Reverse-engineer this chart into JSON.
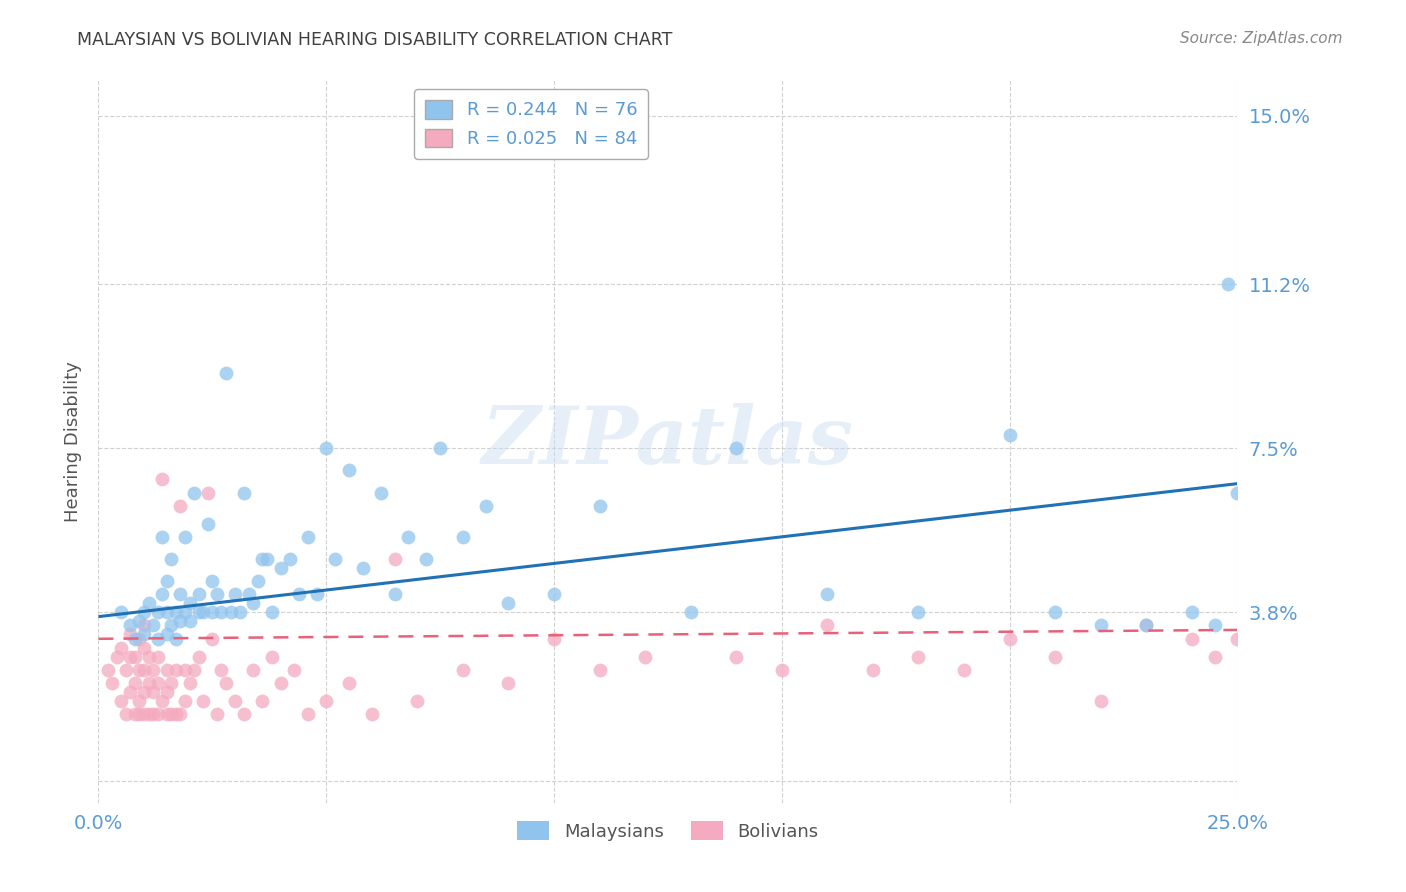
{
  "title": "MALAYSIAN VS BOLIVIAN HEARING DISABILITY CORRELATION CHART",
  "source": "Source: ZipAtlas.com",
  "ylabel": "Hearing Disability",
  "xlim": [
    0.0,
    0.25
  ],
  "ylim": [
    -0.005,
    0.158
  ],
  "ytick_vals": [
    0.0,
    0.038,
    0.075,
    0.112,
    0.15
  ],
  "ytick_labels": [
    "",
    "3.8%",
    "7.5%",
    "11.2%",
    "15.0%"
  ],
  "xtick_vals": [
    0.0,
    0.05,
    0.1,
    0.15,
    0.2,
    0.25
  ],
  "xtick_labels": [
    "0.0%",
    "",
    "",
    "",
    "",
    "25.0%"
  ],
  "legend_r_malaysian": "R = 0.244",
  "legend_n_malaysian": "N = 76",
  "legend_r_bolivian": "R = 0.025",
  "legend_n_bolivian": "N = 84",
  "malaysian_color": "#90C4ED",
  "bolivian_color": "#F4AABF",
  "malaysian_line_color": "#2171B5",
  "bolivian_line_color": "#E8607A",
  "watermark_text": "ZIPatlas",
  "background_color": "#FFFFFF",
  "grid_color": "#CCCCCC",
  "title_color": "#404040",
  "tick_label_color": "#5B9BD5",
  "source_color": "#888888",
  "ylabel_color": "#555555",
  "legend_text_color": "#5B9BD5",
  "bottom_legend_text_color": "#555555",
  "malaysian_line_x": [
    0.0,
    0.25
  ],
  "malaysian_line_y": [
    0.037,
    0.067
  ],
  "bolivian_line_x": [
    0.0,
    0.25
  ],
  "bolivian_line_y": [
    0.032,
    0.034
  ],
  "malaysian_scatter_x": [
    0.005,
    0.007,
    0.008,
    0.009,
    0.01,
    0.01,
    0.011,
    0.012,
    0.013,
    0.013,
    0.014,
    0.014,
    0.015,
    0.015,
    0.015,
    0.016,
    0.016,
    0.017,
    0.017,
    0.018,
    0.018,
    0.019,
    0.019,
    0.02,
    0.02,
    0.021,
    0.022,
    0.022,
    0.023,
    0.024,
    0.025,
    0.025,
    0.026,
    0.027,
    0.028,
    0.029,
    0.03,
    0.031,
    0.032,
    0.033,
    0.034,
    0.035,
    0.036,
    0.037,
    0.038,
    0.04,
    0.042,
    0.044,
    0.046,
    0.048,
    0.05,
    0.052,
    0.055,
    0.058,
    0.062,
    0.065,
    0.068,
    0.072,
    0.075,
    0.08,
    0.085,
    0.09,
    0.1,
    0.11,
    0.13,
    0.14,
    0.16,
    0.18,
    0.2,
    0.21,
    0.22,
    0.23,
    0.24,
    0.245,
    0.248,
    0.25
  ],
  "malaysian_scatter_y": [
    0.038,
    0.035,
    0.032,
    0.036,
    0.033,
    0.038,
    0.04,
    0.035,
    0.032,
    0.038,
    0.042,
    0.055,
    0.033,
    0.038,
    0.045,
    0.035,
    0.05,
    0.032,
    0.038,
    0.036,
    0.042,
    0.038,
    0.055,
    0.036,
    0.04,
    0.065,
    0.038,
    0.042,
    0.038,
    0.058,
    0.038,
    0.045,
    0.042,
    0.038,
    0.092,
    0.038,
    0.042,
    0.038,
    0.065,
    0.042,
    0.04,
    0.045,
    0.05,
    0.05,
    0.038,
    0.048,
    0.05,
    0.042,
    0.055,
    0.042,
    0.075,
    0.05,
    0.07,
    0.048,
    0.065,
    0.042,
    0.055,
    0.05,
    0.075,
    0.055,
    0.062,
    0.04,
    0.042,
    0.062,
    0.038,
    0.075,
    0.042,
    0.038,
    0.078,
    0.038,
    0.035,
    0.035,
    0.038,
    0.035,
    0.112,
    0.065
  ],
  "bolivian_scatter_x": [
    0.002,
    0.003,
    0.004,
    0.005,
    0.005,
    0.006,
    0.006,
    0.007,
    0.007,
    0.007,
    0.008,
    0.008,
    0.008,
    0.009,
    0.009,
    0.009,
    0.009,
    0.01,
    0.01,
    0.01,
    0.01,
    0.01,
    0.011,
    0.011,
    0.011,
    0.012,
    0.012,
    0.012,
    0.013,
    0.013,
    0.013,
    0.014,
    0.014,
    0.015,
    0.015,
    0.015,
    0.016,
    0.016,
    0.017,
    0.017,
    0.018,
    0.018,
    0.019,
    0.019,
    0.02,
    0.021,
    0.022,
    0.023,
    0.024,
    0.025,
    0.026,
    0.027,
    0.028,
    0.03,
    0.032,
    0.034,
    0.036,
    0.038,
    0.04,
    0.043,
    0.046,
    0.05,
    0.055,
    0.06,
    0.065,
    0.07,
    0.08,
    0.09,
    0.1,
    0.11,
    0.12,
    0.14,
    0.15,
    0.16,
    0.17,
    0.18,
    0.19,
    0.2,
    0.21,
    0.22,
    0.23,
    0.24,
    0.245,
    0.25
  ],
  "bolivian_scatter_y": [
    0.025,
    0.022,
    0.028,
    0.018,
    0.03,
    0.015,
    0.025,
    0.02,
    0.028,
    0.033,
    0.015,
    0.022,
    0.028,
    0.015,
    0.018,
    0.025,
    0.032,
    0.015,
    0.02,
    0.025,
    0.03,
    0.035,
    0.015,
    0.022,
    0.028,
    0.015,
    0.02,
    0.025,
    0.015,
    0.022,
    0.028,
    0.018,
    0.068,
    0.015,
    0.02,
    0.025,
    0.015,
    0.022,
    0.015,
    0.025,
    0.015,
    0.062,
    0.018,
    0.025,
    0.022,
    0.025,
    0.028,
    0.018,
    0.065,
    0.032,
    0.015,
    0.025,
    0.022,
    0.018,
    0.015,
    0.025,
    0.018,
    0.028,
    0.022,
    0.025,
    0.015,
    0.018,
    0.022,
    0.015,
    0.05,
    0.018,
    0.025,
    0.022,
    0.032,
    0.025,
    0.028,
    0.028,
    0.025,
    0.035,
    0.025,
    0.028,
    0.025,
    0.032,
    0.028,
    0.018,
    0.035,
    0.032,
    0.028,
    0.032
  ]
}
